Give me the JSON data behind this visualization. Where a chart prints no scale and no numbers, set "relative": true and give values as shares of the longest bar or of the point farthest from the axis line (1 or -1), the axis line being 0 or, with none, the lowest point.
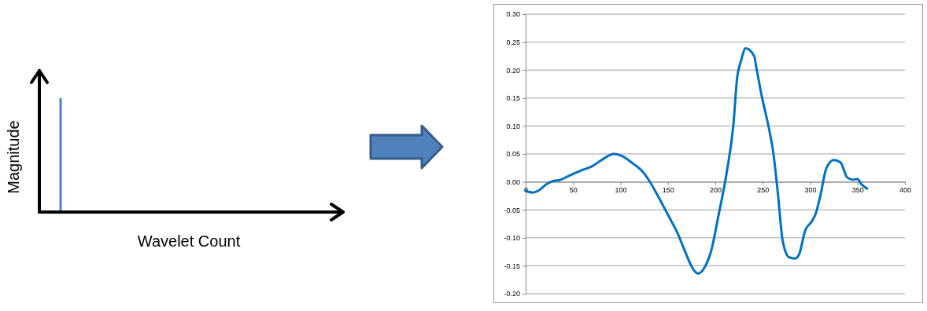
{
  "chart_data": [
    {
      "type": "bar",
      "relative": true,
      "xlabel": "Wavelet Count",
      "ylabel": "Magnitude",
      "categories": [
        null
      ],
      "values": [
        1
      ],
      "color": "#4f81bd"
    },
    {
      "type": "line",
      "xlim": [
        0,
        400
      ],
      "ylim": [
        -0.2,
        0.3
      ],
      "grid": "y",
      "line_style": "solid",
      "marker": "none",
      "color": "#0070c0",
      "xticks": [
        0,
        50,
        100,
        150,
        200,
        250,
        300,
        350,
        400
      ],
      "yticks": [
        {
          "value": -0.2,
          "label": "-0.20"
        },
        {
          "value": -0.15,
          "label": "-0.15"
        },
        {
          "value": -0.1,
          "label": "-0.10"
        },
        {
          "value": -0.05,
          "label": "-0.05"
        },
        {
          "value": 0,
          "label": "0.00"
        },
        {
          "value": 0.05,
          "label": "0.05"
        },
        {
          "value": 0.1,
          "label": "0.10"
        },
        {
          "value": 0.15,
          "label": "0.15"
        },
        {
          "value": 0.2,
          "label": "0.20"
        },
        {
          "value": 0.25,
          "label": "0.25"
        },
        {
          "value": 0.3,
          "label": "0.30"
        }
      ],
      "x": [
        0,
        8,
        15,
        22,
        30,
        35,
        47,
        61,
        69,
        80,
        93,
        102,
        113,
        123,
        130,
        141,
        152,
        160,
        168,
        177,
        182,
        189,
        196,
        203,
        212,
        219,
        223,
        227,
        232,
        241,
        243,
        249,
        257,
        261,
        266,
        271,
        278,
        284,
        288,
        295,
        302,
        306,
        311,
        317,
        325,
        332,
        339,
        345,
        350,
        354,
        360
      ],
      "values": [
        -0.016,
        -0.019,
        -0.014,
        -0.004,
        0.002,
        0.003,
        0.012,
        0.022,
        0.027,
        0.039,
        0.05,
        0.046,
        0.033,
        0.019,
        0.003,
        -0.03,
        -0.065,
        -0.091,
        -0.124,
        -0.157,
        -0.164,
        -0.152,
        -0.121,
        -0.063,
        0.017,
        0.101,
        0.186,
        0.216,
        0.239,
        0.225,
        0.207,
        0.153,
        0.092,
        0.054,
        -0.021,
        -0.105,
        -0.135,
        -0.137,
        -0.131,
        -0.086,
        -0.07,
        -0.056,
        -0.023,
        0.024,
        0.039,
        0.035,
        0.008,
        0.004,
        0.005,
        -0.004,
        -0.012
      ]
    }
  ]
}
